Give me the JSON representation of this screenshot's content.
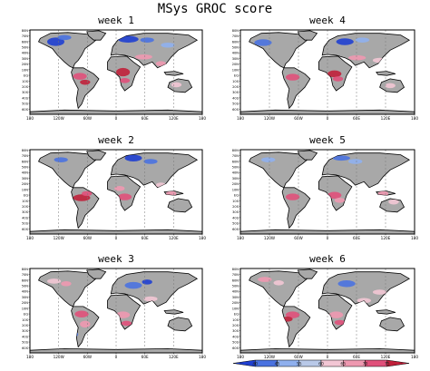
{
  "figure": {
    "title": "MSys GROC score",
    "panels": [
      {
        "id": "week1",
        "label": "week 1"
      },
      {
        "id": "week4",
        "label": "week 4"
      },
      {
        "id": "week2",
        "label": "week 2"
      },
      {
        "id": "week5",
        "label": "week 5"
      },
      {
        "id": "week3",
        "label": "week 3"
      },
      {
        "id": "week6",
        "label": "week 6"
      }
    ],
    "lat_ticks": [
      "80N",
      "70N",
      "60N",
      "50N",
      "40N",
      "30N",
      "20N",
      "10N",
      "EQ",
      "10S",
      "20S",
      "30S",
      "40S",
      "50S",
      "60S"
    ],
    "lon_ticks": [
      "180",
      "120W",
      "60W",
      "0",
      "60E",
      "120E",
      "180"
    ],
    "colorbar": {
      "labels": [
        "40",
        "45",
        "55",
        "60",
        "65",
        "70",
        "75"
      ],
      "colors": [
        "#1f3fd0",
        "#4a72e0",
        "#8fb0ee",
        "#b9c9e8",
        "#f2c6d4",
        "#ee98b0",
        "#e0507a",
        "#c0203a"
      ]
    },
    "land_color": "#a8a8a8",
    "ocean_color": "#ffffff"
  }
}
